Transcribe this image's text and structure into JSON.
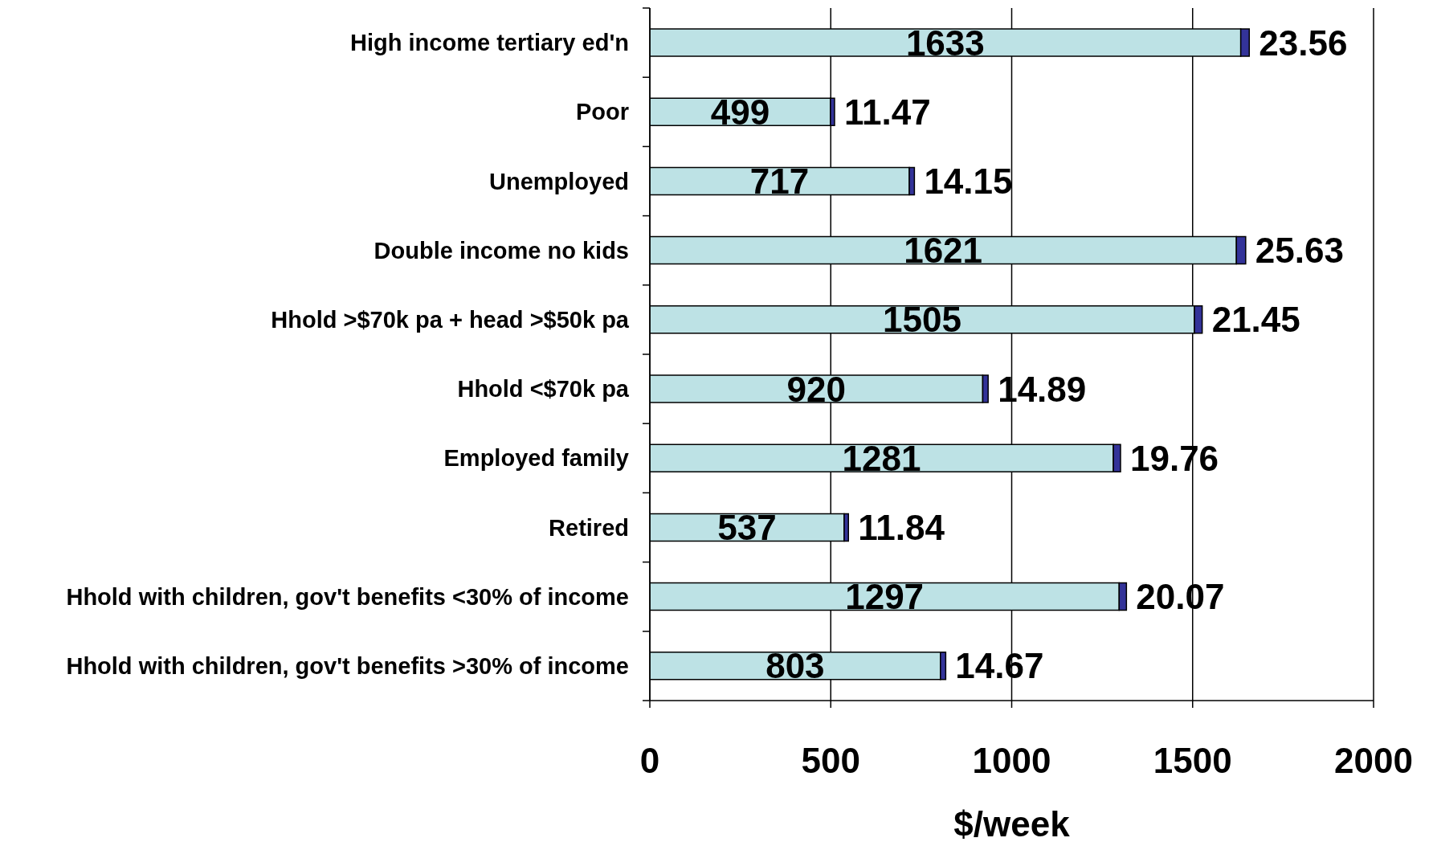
{
  "chart_data": {
    "type": "bar",
    "orientation": "horizontal",
    "stacked": true,
    "categories": [
      "High income tertiary ed'n",
      "Poor",
      "Unemployed",
      "Double income no kids",
      "Hhold >$70k pa + head >$50k pa",
      "Hhold <$70k pa",
      "Employed family",
      "Retired",
      "Hhold with children, gov't benefits <30% of income",
      "Hhold with children, gov't benefits >30% of income"
    ],
    "series": [
      {
        "color": "#bde2e5",
        "values": [
          1633,
          499,
          717,
          1621,
          1505,
          920,
          1281,
          537,
          1297,
          803
        ]
      },
      {
        "color": "#333399",
        "values": [
          23.56,
          11.47,
          14.15,
          25.63,
          21.45,
          14.89,
          19.76,
          11.84,
          20.07,
          14.67
        ]
      }
    ],
    "xlabel": "$/week",
    "xlim": [
      0,
      2000
    ],
    "xticks": [
      0,
      500,
      1000,
      1500,
      2000
    ],
    "grid": "x",
    "data_labels": true
  }
}
